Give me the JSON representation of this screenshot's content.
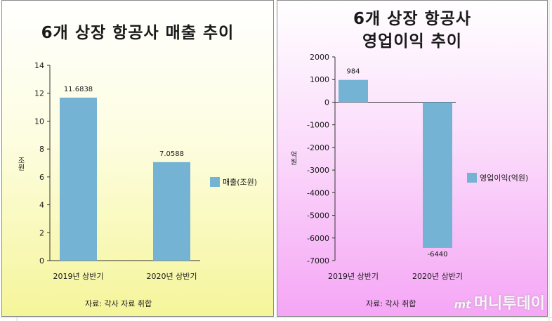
{
  "chart_data": [
    {
      "type": "bar",
      "title": "6개 상장 항공사 매출 추이",
      "categories": [
        "2019년 상반기",
        "2020년 상반기"
      ],
      "series": [
        {
          "name": "매출(조원)",
          "values": [
            11.6838,
            7.0588
          ]
        }
      ],
      "value_labels": [
        "11.6838",
        "7.0588"
      ],
      "ylabel": "조원",
      "ylim": [
        0,
        14
      ],
      "yticks": [
        0,
        2,
        4,
        6,
        8,
        10,
        12,
        14
      ],
      "legend_position": "right",
      "source": "자료: 각사 자료 취합",
      "color": "#74b3d4"
    },
    {
      "type": "bar",
      "title": [
        "6개 상장 항공사",
        "영업이익 추이"
      ],
      "categories": [
        "2019년 상반기",
        "2020년 상반기"
      ],
      "series": [
        {
          "name": "영업이익(억원)",
          "values": [
            984,
            -6440
          ]
        }
      ],
      "value_labels": [
        "984",
        "-6440"
      ],
      "ylabel": "억원",
      "ylim": [
        -7000,
        2000
      ],
      "yticks": [
        2000,
        1000,
        0,
        -1000,
        -2000,
        -3000,
        -4000,
        -5000,
        -6000,
        -7000
      ],
      "legend_position": "right",
      "source": "자료: 각사 취합",
      "color": "#74b3d4"
    }
  ],
  "watermark": {
    "logo": "mt",
    "text": "머니투데이"
  }
}
